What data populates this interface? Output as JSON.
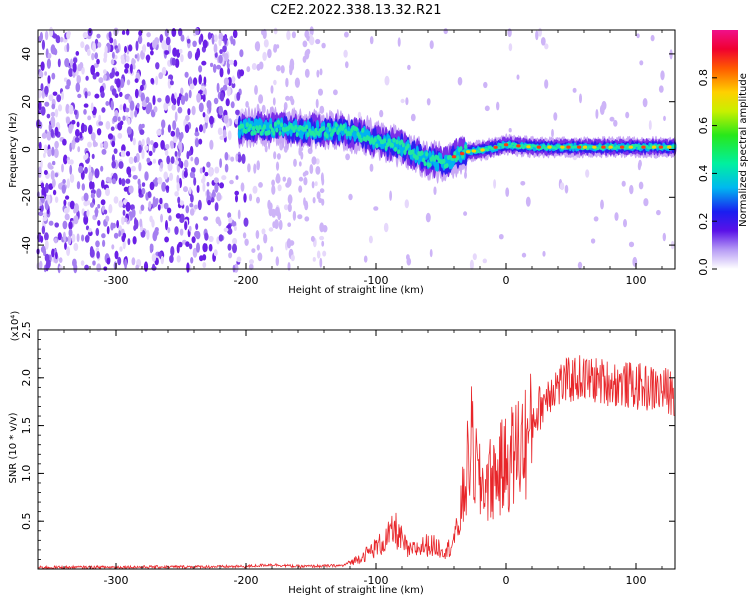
{
  "title": "C2E2.2022.338.13.32.R21",
  "chart_data": [
    {
      "type": "heatmap",
      "xlabel": "Height of straight line (km)",
      "ylabel": "Frequency (Hz)",
      "xlim": [
        -360,
        130
      ],
      "ylim": [
        -50,
        50
      ],
      "xticks": [
        -300,
        -200,
        -100,
        0,
        100
      ],
      "yticks": [
        -40,
        -20,
        0,
        20,
        40
      ],
      "colorbar": {
        "label": "Normalized spectral amplitude",
        "range": [
          0.0,
          1.0
        ],
        "ticks": [
          "0.0",
          "0.2",
          "0.4",
          "0.6",
          "0.8"
        ],
        "tick_values": [
          0.0,
          0.2,
          0.4,
          0.6,
          0.8
        ]
      },
      "ridge": [
        {
          "x": -200,
          "f": 9
        },
        {
          "x": -170,
          "f": 9
        },
        {
          "x": -150,
          "f": 8
        },
        {
          "x": -130,
          "f": 8
        },
        {
          "x": -110,
          "f": 6
        },
        {
          "x": -95,
          "f": 3
        },
        {
          "x": -80,
          "f": 1
        },
        {
          "x": -65,
          "f": -3
        },
        {
          "x": -55,
          "f": -5
        },
        {
          "x": -45,
          "f": -6
        },
        {
          "x": -40,
          "f": -3
        },
        {
          "x": -30,
          "f": -1
        },
        {
          "x": -15,
          "f": 0
        },
        {
          "x": 0,
          "f": 2
        },
        {
          "x": 20,
          "f": 1
        },
        {
          "x": 60,
          "f": 1
        },
        {
          "x": 130,
          "f": 1
        }
      ]
    },
    {
      "type": "line",
      "xlabel": "Height of straight line (km)",
      "ylabel": "SNR (10 * v/v)",
      "y_multiplier": "(x10⁴)",
      "xlim": [
        -360,
        130
      ],
      "ylim": [
        0,
        2.5
      ],
      "xticks": [
        -300,
        -200,
        -100,
        0,
        100
      ],
      "yticks": [
        "0.5",
        "1.0",
        "1.5",
        "2.0",
        "2.5"
      ],
      "ytick_values": [
        0.5,
        1.0,
        1.5,
        2.0,
        2.5
      ],
      "color": "#e8262a",
      "envelope": [
        {
          "x": -360,
          "y": 0.01
        },
        {
          "x": -200,
          "y": 0.02
        },
        {
          "x": -180,
          "y": 0.04
        },
        {
          "x": -160,
          "y": 0.02
        },
        {
          "x": -125,
          "y": 0.03
        },
        {
          "x": -110,
          "y": 0.15
        },
        {
          "x": -95,
          "y": 0.3
        },
        {
          "x": -85,
          "y": 0.45
        },
        {
          "x": -75,
          "y": 0.2
        },
        {
          "x": -60,
          "y": 0.28
        },
        {
          "x": -45,
          "y": 0.22
        },
        {
          "x": -38,
          "y": 0.4
        },
        {
          "x": -32,
          "y": 0.9
        },
        {
          "x": -27,
          "y": 1.45
        },
        {
          "x": -20,
          "y": 0.95
        },
        {
          "x": -10,
          "y": 1.05
        },
        {
          "x": 0,
          "y": 1.2
        },
        {
          "x": 10,
          "y": 1.4
        },
        {
          "x": 20,
          "y": 1.55
        },
        {
          "x": 35,
          "y": 1.9
        },
        {
          "x": 55,
          "y": 2.0
        },
        {
          "x": 80,
          "y": 1.95
        },
        {
          "x": 105,
          "y": 1.9
        },
        {
          "x": 130,
          "y": 1.85
        }
      ]
    }
  ]
}
